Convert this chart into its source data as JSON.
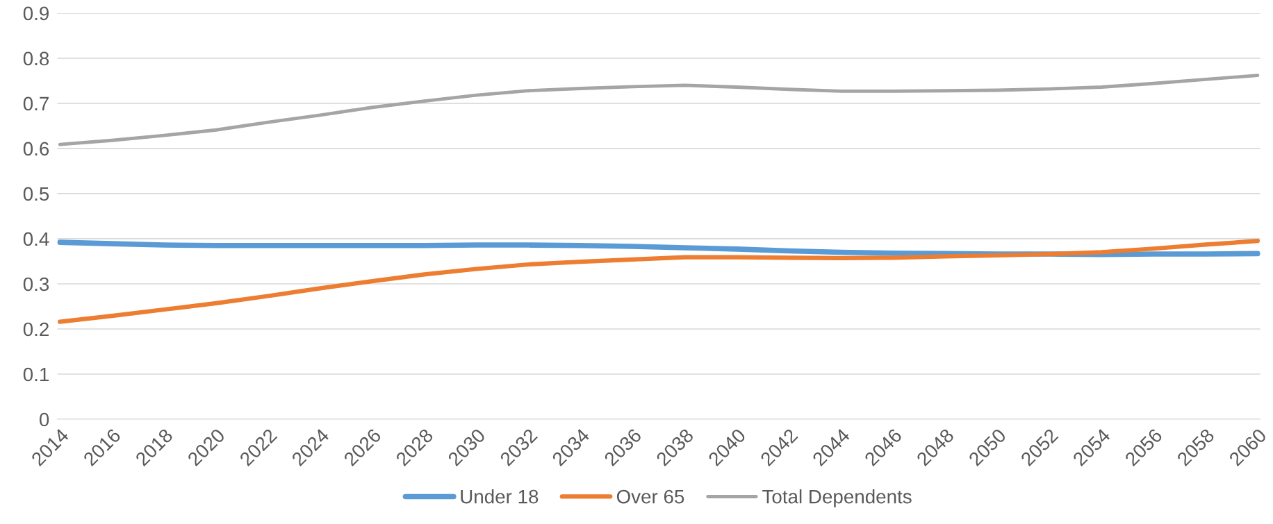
{
  "chart_data": {
    "type": "line",
    "categories": [
      "2014",
      "2016",
      "2018",
      "2020",
      "2022",
      "2024",
      "2026",
      "2028",
      "2030",
      "2032",
      "2034",
      "2036",
      "2038",
      "2040",
      "2042",
      "2044",
      "2046",
      "2048",
      "2050",
      "2052",
      "2054",
      "2056",
      "2058",
      "2060"
    ],
    "series": [
      {
        "name": "Under 18",
        "color": "#5b9bd5",
        "values": [
          0.392,
          0.389,
          0.386,
          0.385,
          0.385,
          0.385,
          0.385,
          0.385,
          0.386,
          0.386,
          0.385,
          0.383,
          0.38,
          0.377,
          0.373,
          0.37,
          0.368,
          0.367,
          0.366,
          0.366,
          0.365,
          0.366,
          0.366,
          0.367
        ]
      },
      {
        "name": "Over 65",
        "color": "#ed7d31",
        "values": [
          0.216,
          0.229,
          0.243,
          0.257,
          0.273,
          0.29,
          0.306,
          0.321,
          0.333,
          0.343,
          0.349,
          0.354,
          0.359,
          0.359,
          0.358,
          0.357,
          0.358,
          0.361,
          0.363,
          0.366,
          0.37,
          0.378,
          0.387,
          0.395
        ]
      },
      {
        "name": "Total Dependents",
        "color": "#a5a5a5",
        "values": [
          0.609,
          0.618,
          0.629,
          0.641,
          0.658,
          0.674,
          0.691,
          0.705,
          0.718,
          0.728,
          0.733,
          0.737,
          0.74,
          0.736,
          0.731,
          0.727,
          0.727,
          0.728,
          0.729,
          0.732,
          0.736,
          0.744,
          0.753,
          0.762
        ]
      }
    ],
    "ylim": [
      0,
      0.9
    ],
    "yticks": [
      0,
      0.1,
      0.2,
      0.3,
      0.4,
      0.5,
      0.6,
      0.7,
      0.8,
      0.9
    ],
    "grid": "y",
    "legend": "bottom",
    "marker": "none",
    "line_style": "solid"
  }
}
